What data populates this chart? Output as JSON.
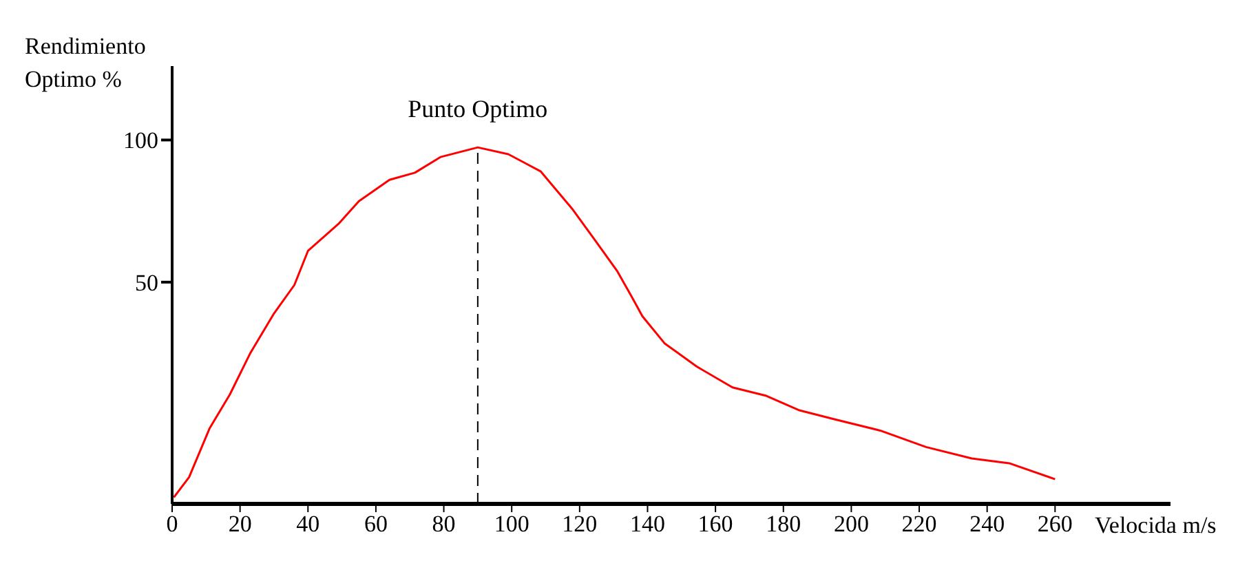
{
  "chart_data": {
    "type": "line",
    "xlabel": "Velocida m/s",
    "ylabel": "Rendimiento Optimo %",
    "x": [
      0.5,
      5,
      11,
      17,
      23,
      30,
      36,
      40,
      49,
      55,
      64,
      71.5,
      79,
      90,
      99,
      108.5,
      118,
      125,
      131,
      135.5,
      138.5,
      145,
      154.5,
      165,
      175,
      184.5,
      195,
      208.5,
      222,
      235.5,
      246.5,
      260
    ],
    "series": [
      {
        "color": "#ff0000",
        "values": [
          -25.7,
          -18.6,
          -1.5,
          10.5,
          25,
          39,
          49,
          61,
          70.5,
          78.5,
          86,
          88.5,
          94,
          97.4,
          95,
          89,
          75.5,
          64,
          54,
          44.5,
          38,
          28.5,
          20.3,
          13,
          10,
          5,
          1.8,
          -2.2,
          -8,
          -12,
          -13.7,
          -19.3
        ]
      }
    ],
    "xlim": [
      0,
      294
    ],
    "xticks": [
      0,
      20,
      40,
      60,
      80,
      100,
      120,
      140,
      160,
      180,
      200,
      220,
      240,
      260
    ],
    "ylim": [
      -28,
      126
    ],
    "yticks": [
      50,
      100
    ],
    "ref_lines": [
      {
        "axis": "x",
        "value": 90,
        "label": "Punto Optimo",
        "line_style": "dashed",
        "color": "#000000"
      }
    ],
    "grid": false,
    "legend": false,
    "marker": "none",
    "line_style": "solid"
  }
}
